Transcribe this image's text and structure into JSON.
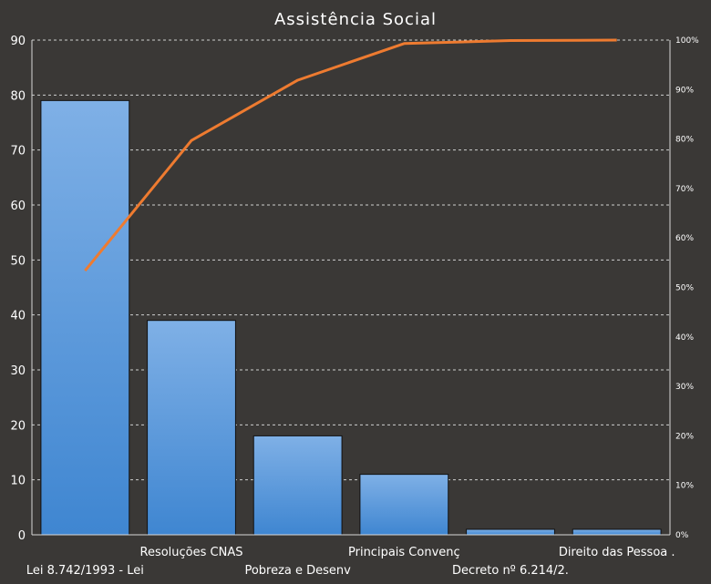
{
  "chart_data": {
    "type": "bar",
    "title": "Assistência Social",
    "categories": [
      "Lei 8.742/1993 - Lei",
      "Resoluções CNAS",
      "Pobreza e Desenv",
      "Principais Convenç",
      "Decreto nº 6.214/2.",
      "Direito das Pessoa ."
    ],
    "values": [
      79,
      39,
      18,
      11,
      1,
      1
    ],
    "cumulative_percent": [
      53.4,
      79.7,
      91.9,
      99.3,
      99.9,
      100
    ],
    "ylim": [
      0,
      90
    ],
    "y_ticks": [
      0,
      10,
      20,
      30,
      40,
      50,
      60,
      70,
      80,
      90
    ],
    "y2lim": [
      0,
      100
    ],
    "y2_ticks": [
      "0%",
      "10%",
      "20%",
      "30%",
      "40%",
      "50%",
      "60%",
      "70%",
      "80%",
      "90%",
      "100%"
    ],
    "grid": true,
    "legend": "none",
    "colors": {
      "background": "#3a3836",
      "bar_top": "#7fb0e6",
      "bar_bottom": "#3f86d1",
      "line": "#ee7b30",
      "grid": "#cfcfcf"
    }
  }
}
